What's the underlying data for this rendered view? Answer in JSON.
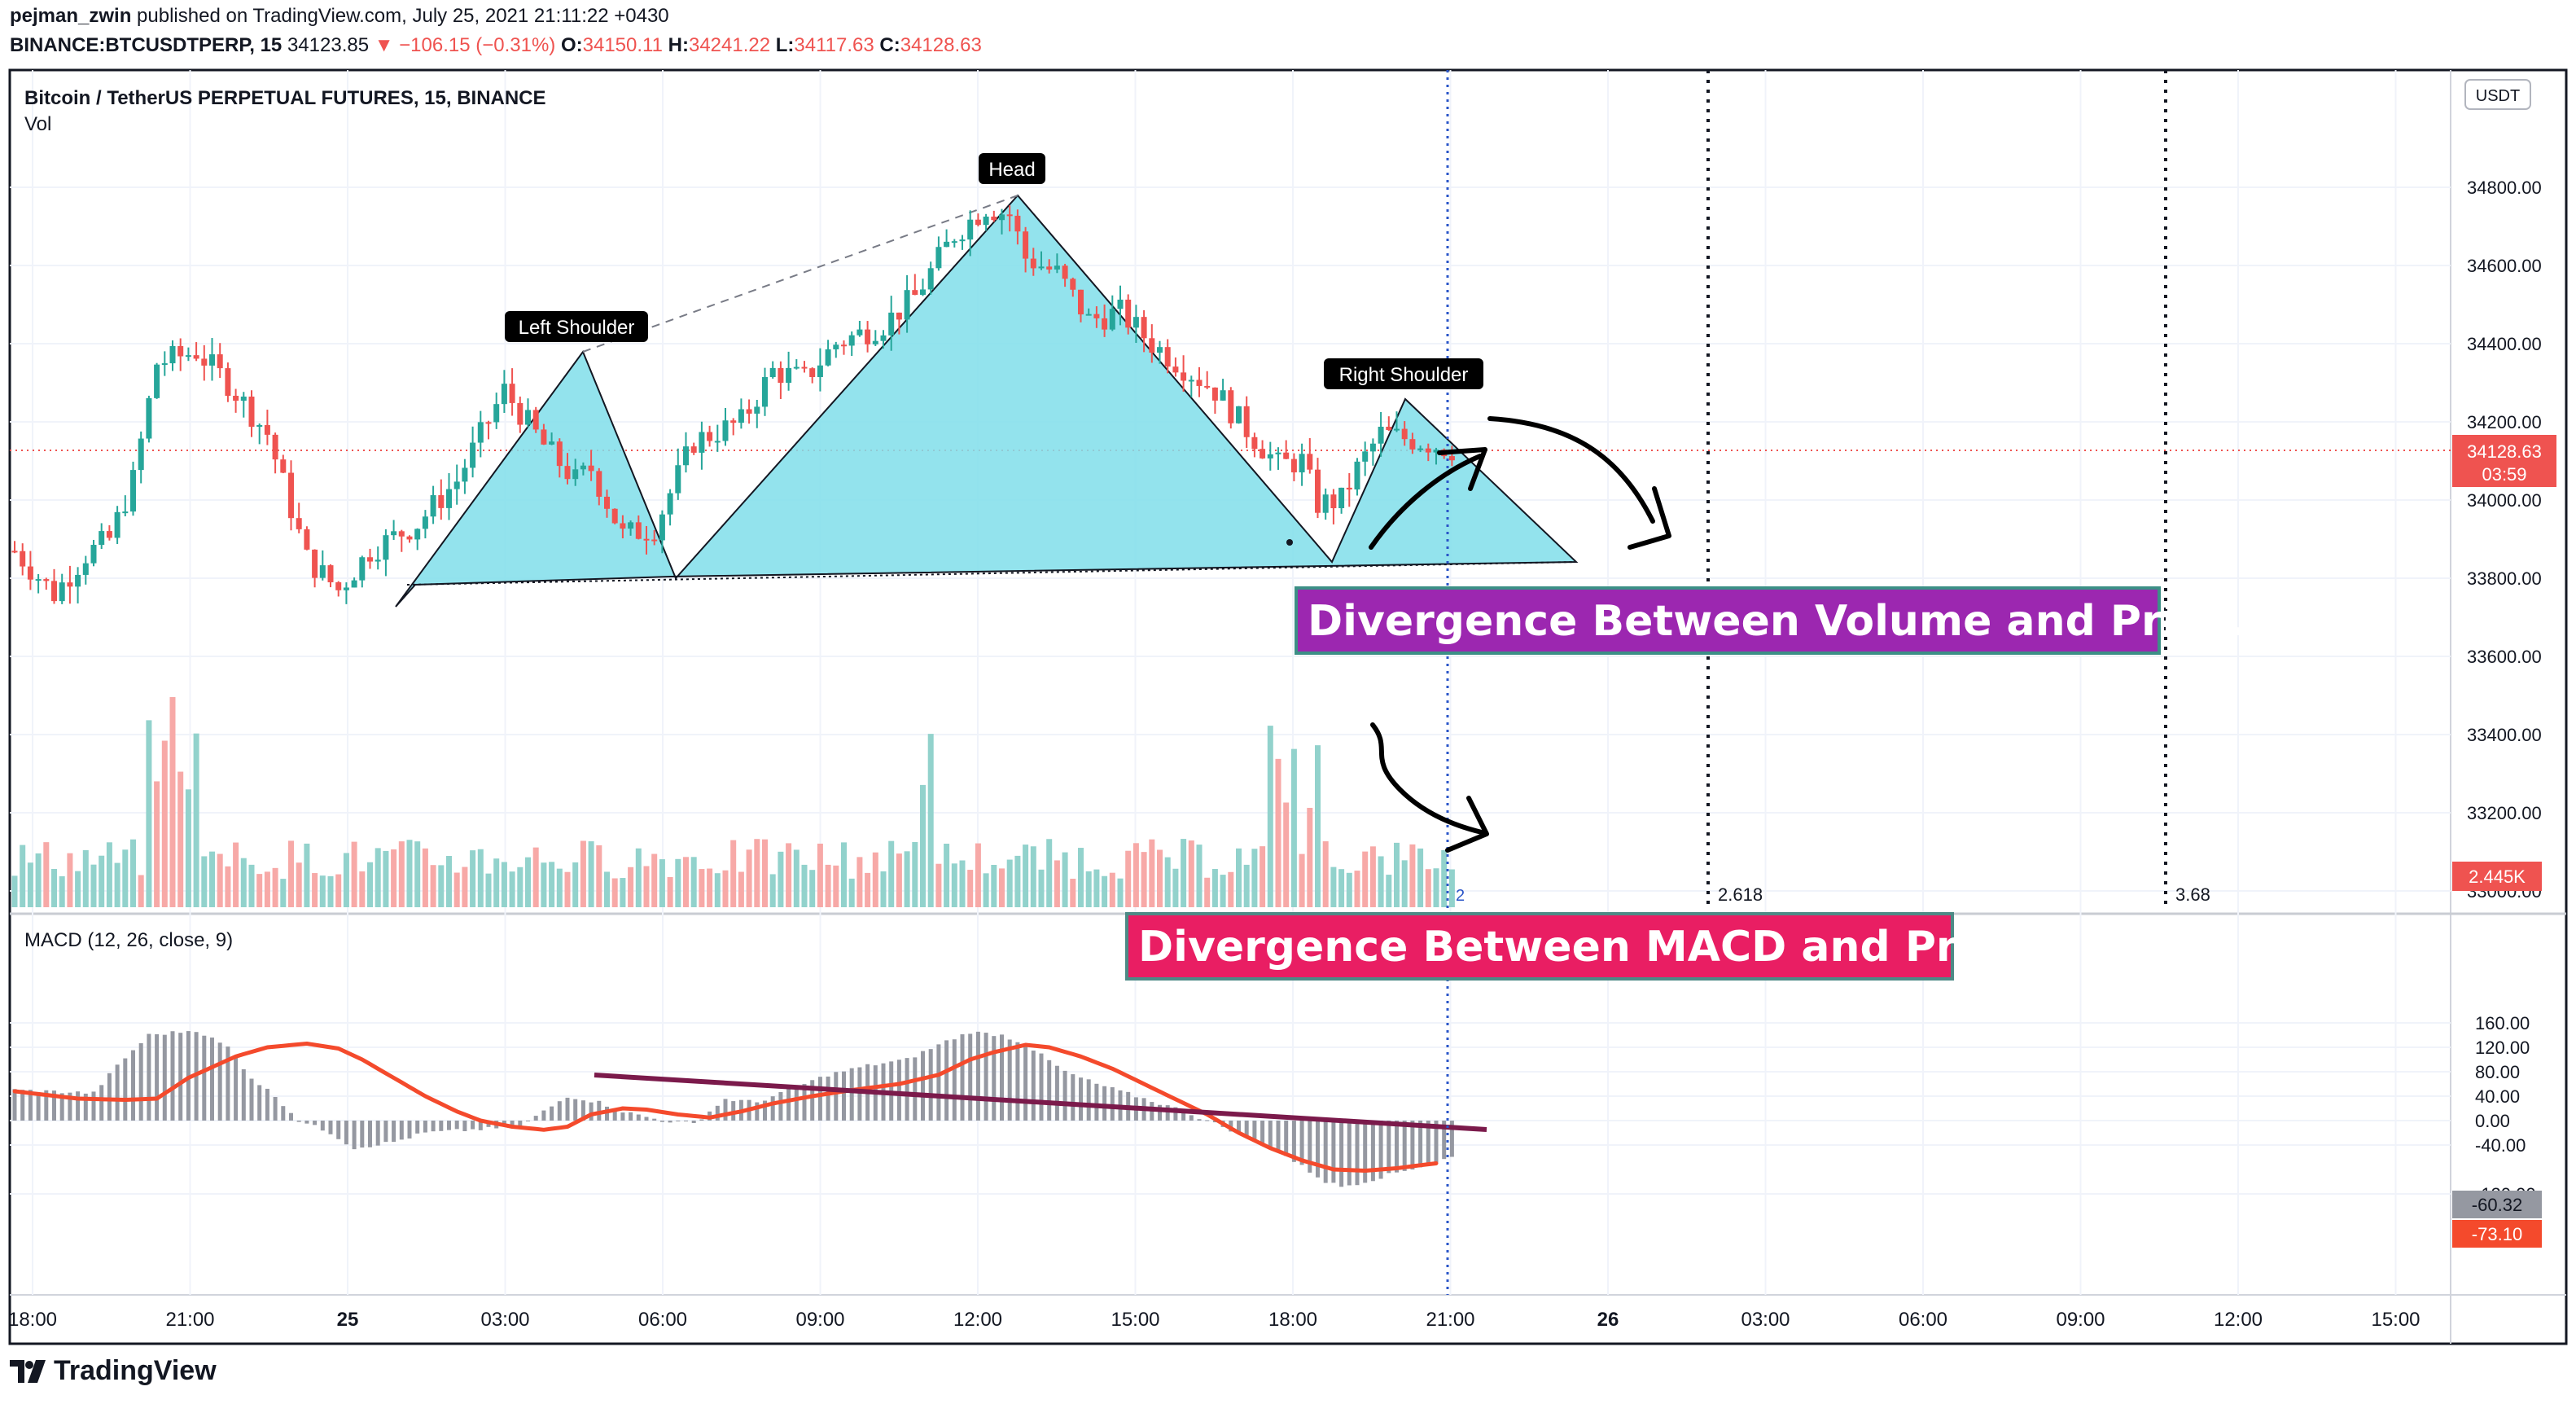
{
  "header": {
    "author": "pejman_zwin",
    "published": "published on TradingView.com, July 25, 2021 21:11:22 +0430",
    "symbol": "BINANCE:BTCUSDTPERP, 15",
    "last": "34123.85",
    "change": "▼ −106.15 (−0.31%)",
    "o_label": "O:",
    "o_value": "34150.11",
    "h_label": "H:",
    "h_value": "34241.22",
    "l_label": "L:",
    "l_value": "34117.63",
    "c_label": "C:",
    "c_value": "34128.63"
  },
  "pane_title": "Bitcoin / TetherUS PERPETUAL FUTURES, 15, BINANCE",
  "vol_label": "Vol",
  "macd_label": "MACD (12, 26, close, 9)",
  "currency_badge": "USDT",
  "price_badge": "34128.63",
  "countdown_badge": "03:59",
  "volume_badge": "2.445K",
  "macd_badge": "-60.32",
  "signal_badge": "-73.10",
  "brand": "TradingView",
  "annotations": {
    "left_shoulder": "Left Shoulder",
    "head": "Head",
    "right_shoulder": "Right Shoulder",
    "volume_divergence": "Divergence Between Volume and Price.",
    "macd_divergence": "Divergence Between MACD and Price.",
    "fib_1": "2.618",
    "fib_2": "3.68",
    "vertical_line_label": "2"
  },
  "colors": {
    "up": "#26a69a",
    "down": "#ef5350",
    "vol_up": "#92d2cc",
    "vol_down": "#f7a9a7",
    "pattern_fill": "#80deea",
    "macd_hist": "#9598a1",
    "signal": "#f44a2c",
    "trendline": "#7b1a4b",
    "box_purple": "#9c27b0",
    "box_pink": "#e91e63",
    "vline_blue": "#2a55c8"
  },
  "chart_data": {
    "type": "candlestick",
    "title": "Bitcoin / TetherUS PERPETUAL FUTURES, 15, BINANCE",
    "price_axis": {
      "ticks": [
        "34800.00",
        "34600.00",
        "34400.00",
        "34200.00",
        "34000.00",
        "33800.00",
        "33600.00",
        "33400.00",
        "33200.00",
        "33000.00"
      ],
      "ylim": [
        33000,
        35000
      ]
    },
    "time_axis": {
      "ticks": [
        "18:00",
        "21:00",
        "25",
        "03:00",
        "06:00",
        "09:00",
        "12:00",
        "15:00",
        "18:00",
        "21:00",
        "26",
        "03:00",
        "06:00",
        "09:00",
        "12:00",
        "15:00"
      ]
    },
    "macd_axis": {
      "ticks": [
        "160.00",
        "120.00",
        "80.00",
        "40.00",
        "0.00",
        "-40.00",
        "-120.00"
      ],
      "ylim": [
        -130,
        165
      ]
    },
    "price_anchors": [
      [
        0,
        33870
      ],
      [
        5,
        33760
      ],
      [
        9,
        33860
      ],
      [
        12,
        33900
      ],
      [
        15,
        34050
      ],
      [
        18,
        34350
      ],
      [
        23,
        34380
      ],
      [
        27,
        34300
      ],
      [
        32,
        34170
      ],
      [
        37,
        33850
      ],
      [
        41,
        33770
      ],
      [
        45,
        33870
      ],
      [
        51,
        33940
      ],
      [
        56,
        34050
      ],
      [
        62,
        34280
      ],
      [
        67,
        34140
      ],
      [
        71,
        34050
      ],
      [
        73,
        34080
      ],
      [
        77,
        33910
      ],
      [
        81,
        33930
      ],
      [
        86,
        34150
      ],
      [
        92,
        34200
      ],
      [
        96,
        34330
      ],
      [
        100,
        34310
      ],
      [
        104,
        34400
      ],
      [
        110,
        34450
      ],
      [
        114,
        34520
      ],
      [
        119,
        34680
      ],
      [
        123,
        34750
      ],
      [
        126,
        34730
      ],
      [
        128,
        34620
      ],
      [
        132,
        34580
      ],
      [
        136,
        34460
      ],
      [
        140,
        34480
      ],
      [
        144,
        34400
      ],
      [
        148,
        34340
      ],
      [
        152,
        34280
      ],
      [
        156,
        34180
      ],
      [
        160,
        34090
      ],
      [
        163,
        34100
      ],
      [
        165,
        33990
      ],
      [
        168,
        34000
      ],
      [
        170,
        34080
      ],
      [
        173,
        34170
      ],
      [
        178,
        34150
      ],
      [
        182,
        34130
      ]
    ],
    "volume_range": [
      0,
      2.6
    ],
    "macd_hist_anchors": [
      [
        0,
        50
      ],
      [
        10,
        45
      ],
      [
        13,
        90
      ],
      [
        17,
        140
      ],
      [
        23,
        148
      ],
      [
        27,
        120
      ],
      [
        30,
        70
      ],
      [
        33,
        40
      ],
      [
        36,
        0
      ],
      [
        40,
        -20
      ],
      [
        43,
        -45
      ],
      [
        48,
        -35
      ],
      [
        52,
        -20
      ],
      [
        58,
        -15
      ],
      [
        64,
        -10
      ],
      [
        70,
        40
      ],
      [
        74,
        30
      ],
      [
        77,
        15
      ],
      [
        82,
        0
      ],
      [
        86,
        -5
      ],
      [
        90,
        35
      ],
      [
        94,
        30
      ],
      [
        98,
        50
      ],
      [
        103,
        75
      ],
      [
        108,
        90
      ],
      [
        113,
        100
      ],
      [
        118,
        130
      ],
      [
        121,
        145
      ],
      [
        125,
        140
      ],
      [
        128,
        125
      ],
      [
        133,
        80
      ],
      [
        137,
        60
      ],
      [
        142,
        40
      ],
      [
        147,
        20
      ],
      [
        151,
        0
      ],
      [
        155,
        -20
      ],
      [
        160,
        -50
      ],
      [
        163,
        -75
      ],
      [
        166,
        -100
      ],
      [
        168,
        -108
      ],
      [
        171,
        -100
      ],
      [
        175,
        -85
      ],
      [
        178,
        -75
      ],
      [
        182,
        -60
      ]
    ],
    "signal_anchors": [
      [
        0,
        48
      ],
      [
        8,
        36
      ],
      [
        14,
        34
      ],
      [
        18,
        36
      ],
      [
        22,
        70
      ],
      [
        28,
        105
      ],
      [
        32,
        120
      ],
      [
        37,
        126
      ],
      [
        41,
        118
      ],
      [
        44,
        100
      ],
      [
        48,
        70
      ],
      [
        52,
        40
      ],
      [
        56,
        15
      ],
      [
        59,
        0
      ],
      [
        63,
        -10
      ],
      [
        67,
        -15
      ],
      [
        70,
        -10
      ],
      [
        73,
        10
      ],
      [
        77,
        20
      ],
      [
        80,
        18
      ],
      [
        84,
        10
      ],
      [
        88,
        5
      ],
      [
        92,
        15
      ],
      [
        96,
        28
      ],
      [
        101,
        40
      ],
      [
        106,
        50
      ],
      [
        112,
        60
      ],
      [
        117,
        75
      ],
      [
        121,
        100
      ],
      [
        124,
        112
      ],
      [
        128,
        124
      ],
      [
        131,
        120
      ],
      [
        135,
        105
      ],
      [
        139,
        85
      ],
      [
        143,
        60
      ],
      [
        147,
        35
      ],
      [
        151,
        10
      ],
      [
        155,
        -20
      ],
      [
        159,
        -45
      ],
      [
        163,
        -65
      ],
      [
        167,
        -80
      ],
      [
        171,
        -82
      ],
      [
        175,
        -78
      ],
      [
        178,
        -73
      ],
      [
        180,
        -70
      ]
    ]
  }
}
